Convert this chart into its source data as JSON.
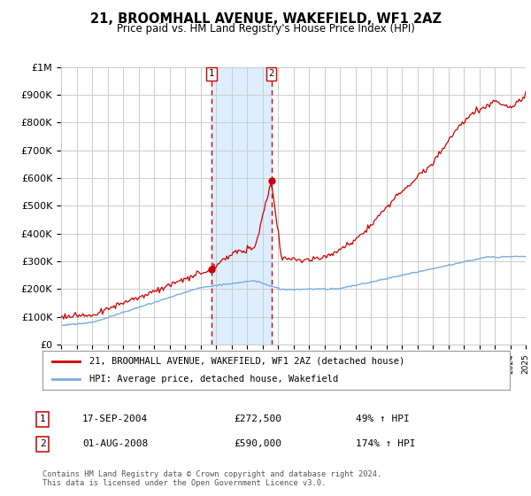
{
  "title": "21, BROOMHALL AVENUE, WAKEFIELD, WF1 2AZ",
  "subtitle": "Price paid vs. HM Land Registry's House Price Index (HPI)",
  "legend_line1": "21, BROOMHALL AVENUE, WAKEFIELD, WF1 2AZ (detached house)",
  "legend_line2": "HPI: Average price, detached house, Wakefield",
  "transaction1_date": "17-SEP-2004",
  "transaction1_price": "£272,500",
  "transaction1_pct": "49% ↑ HPI",
  "transaction2_date": "01-AUG-2008",
  "transaction2_price": "£590,000",
  "transaction2_pct": "174% ↑ HPI",
  "footer": "Contains HM Land Registry data © Crown copyright and database right 2024.\nThis data is licensed under the Open Government Licence v3.0.",
  "red_color": "#cc0000",
  "blue_color": "#7aabdc",
  "shade_color": "#ddeeff",
  "background_color": "#ffffff",
  "grid_color": "#cccccc",
  "ylim": [
    0,
    1000000
  ],
  "yticks": [
    0,
    100000,
    200000,
    300000,
    400000,
    500000,
    600000,
    700000,
    800000,
    900000,
    1000000
  ],
  "ytick_labels": [
    "£0",
    "£100K",
    "£200K",
    "£300K",
    "£400K",
    "£500K",
    "£600K",
    "£700K",
    "£800K",
    "£900K",
    "£1M"
  ],
  "x_start_year": 1995,
  "x_end_year": 2025,
  "transaction1_year": 2004.72,
  "transaction2_year": 2008.58
}
